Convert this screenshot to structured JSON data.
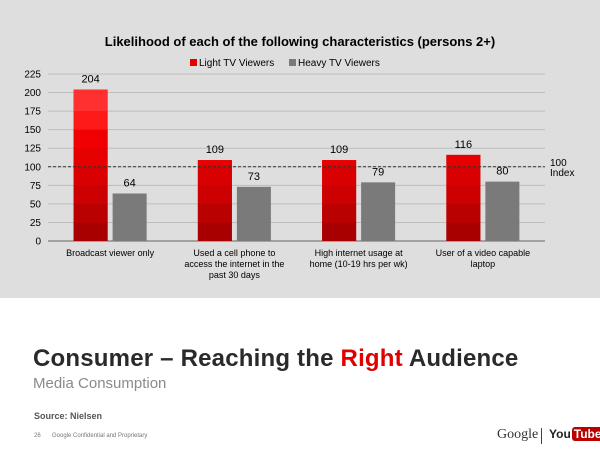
{
  "chart_data": {
    "type": "bar",
    "title": "Likelihood of each of the following characteristics (persons 2+)",
    "categories": [
      "Broadcast viewer only",
      "Used a cell phone to access the internet in the past 30 days",
      "High internet usage at home (10-19 hrs per wk)",
      "User of a video capable laptop"
    ],
    "series": [
      {
        "name": "Light TV Viewers",
        "values": [
          204,
          109,
          109,
          116
        ],
        "color": "#e60000"
      },
      {
        "name": "Heavy TV Viewers",
        "values": [
          64,
          73,
          79,
          80
        ],
        "color": "#7a7a7a"
      }
    ],
    "ylim": [
      0,
      225
    ],
    "yticks": [
      0,
      25,
      50,
      75,
      100,
      125,
      150,
      175,
      200,
      225
    ],
    "grid": true,
    "legend_position": "top-center",
    "reference_line": {
      "value": 100,
      "label_line1": "100",
      "label_line2": "Index",
      "style": "dashed"
    }
  },
  "slide": {
    "title_part1": "Consumer – Reaching the ",
    "title_accent": "Right",
    "title_part2": " Audience",
    "subtitle": "Media Consumption",
    "source": "Source: Nielsen",
    "page_number": "26",
    "confidential": "Google Confidential and Proprietary",
    "logo_google": "Google",
    "logo_you": "You",
    "logo_tube": "Tube",
    "accent_color": "#e00000"
  }
}
